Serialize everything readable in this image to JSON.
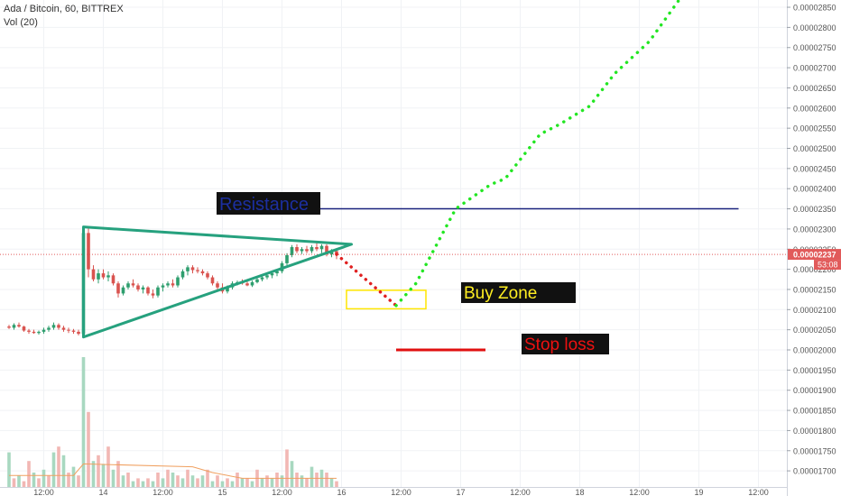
{
  "header": {
    "title": "Ada / Bitcoin, 60, BITTREX",
    "indicator": "Vol (20)"
  },
  "price_badge": {
    "value": "0.00002237",
    "countdown": "53:08",
    "color": "#e15a5a"
  },
  "annotations": {
    "resistance": "Resistance",
    "buy_zone": "Buy Zone",
    "stop_loss": "Stop loss"
  },
  "colors": {
    "up": "#2e9e6e",
    "down": "#d9534f",
    "triangle": "#26a17e",
    "resistance_line": "#1a237e",
    "stop_line": "#e01010",
    "buy_zone": "#ffe600",
    "forecast_up": "#22e622",
    "forecast_down": "#e02020"
  },
  "chart_data": {
    "type": "candlestick",
    "x_ticks": [
      {
        "t": 0,
        "label": "12:00"
      },
      {
        "t": 12,
        "label": "14"
      },
      {
        "t": 24,
        "label": "12:00"
      },
      {
        "t": 36,
        "label": "15"
      },
      {
        "t": 48,
        "label": "12:00"
      },
      {
        "t": 60,
        "label": "16"
      },
      {
        "t": 72,
        "label": "12:00"
      },
      {
        "t": 84,
        "label": "17"
      },
      {
        "t": 96,
        "label": "12:00"
      },
      {
        "t": 108,
        "label": "18"
      },
      {
        "t": 120,
        "label": "12:00"
      },
      {
        "t": 132,
        "label": "19"
      },
      {
        "t": 144,
        "label": "12:00"
      }
    ],
    "y_range": [
      1.66e-05,
      2.868e-05
    ],
    "y_ticks": [
      "0.00001700",
      "0.00001750",
      "0.00001800",
      "0.00001850",
      "0.00001900",
      "0.00001950",
      "0.00002000",
      "0.00002050",
      "0.00002100",
      "0.00002150",
      "0.00002200",
      "0.00002250",
      "0.00002300",
      "0.00002350",
      "0.00002400",
      "0.00002450",
      "0.00002500",
      "0.00002550",
      "0.00002600",
      "0.00002650",
      "0.00002700",
      "0.00002750",
      "0.00002800",
      "0.00002850"
    ],
    "candles": [
      [
        -7,
        2.058,
        2.062,
        2.052,
        2.055
      ],
      [
        -6,
        2.055,
        2.066,
        2.05,
        2.062
      ],
      [
        -5,
        2.062,
        2.068,
        2.055,
        2.058
      ],
      [
        -4,
        2.058,
        2.06,
        2.045,
        2.048
      ],
      [
        -3,
        2.048,
        2.052,
        2.04,
        2.045
      ],
      [
        -2,
        2.045,
        2.05,
        2.04,
        2.042
      ],
      [
        -1,
        2.042,
        2.048,
        2.038,
        2.045
      ],
      [
        0,
        2.045,
        2.055,
        2.04,
        2.05
      ],
      [
        1,
        2.05,
        2.06,
        2.045,
        2.055
      ],
      [
        2,
        2.055,
        2.068,
        2.05,
        2.062
      ],
      [
        3,
        2.062,
        2.066,
        2.05,
        2.055
      ],
      [
        4,
        2.055,
        2.06,
        2.045,
        2.05
      ],
      [
        5,
        2.05,
        2.055,
        2.042,
        2.048
      ],
      [
        6,
        2.048,
        2.052,
        2.04,
        2.045
      ],
      [
        7,
        2.045,
        2.05,
        2.036,
        2.04
      ],
      [
        8,
        2.04,
        2.3,
        2.035,
        2.29
      ],
      [
        9,
        2.29,
        2.305,
        2.18,
        2.2
      ],
      [
        10,
        2.2,
        2.21,
        2.17,
        2.175
      ],
      [
        11,
        2.175,
        2.2,
        2.165,
        2.19
      ],
      [
        12,
        2.19,
        2.2,
        2.175,
        2.18
      ],
      [
        13,
        2.18,
        2.195,
        2.17,
        2.185
      ],
      [
        14,
        2.185,
        2.19,
        2.16,
        2.165
      ],
      [
        15,
        2.165,
        2.17,
        2.13,
        2.14
      ],
      [
        16,
        2.14,
        2.16,
        2.135,
        2.155
      ],
      [
        17,
        2.155,
        2.17,
        2.15,
        2.165
      ],
      [
        18,
        2.165,
        2.175,
        2.155,
        2.16
      ],
      [
        19,
        2.16,
        2.165,
        2.145,
        2.15
      ],
      [
        20,
        2.15,
        2.16,
        2.14,
        2.155
      ],
      [
        21,
        2.155,
        2.158,
        2.135,
        2.14
      ],
      [
        22,
        2.14,
        2.15,
        2.128,
        2.135
      ],
      [
        23,
        2.135,
        2.16,
        2.13,
        2.155
      ],
      [
        24,
        2.155,
        2.165,
        2.145,
        2.16
      ],
      [
        25,
        2.16,
        2.17,
        2.155,
        2.165
      ],
      [
        26,
        2.165,
        2.175,
        2.155,
        2.16
      ],
      [
        27,
        2.16,
        2.185,
        2.155,
        2.18
      ],
      [
        28,
        2.18,
        2.2,
        2.175,
        2.195
      ],
      [
        29,
        2.195,
        2.21,
        2.185,
        2.205
      ],
      [
        30,
        2.205,
        2.21,
        2.19,
        2.198
      ],
      [
        31,
        2.198,
        2.205,
        2.19,
        2.195
      ],
      [
        32,
        2.195,
        2.2,
        2.185,
        2.19
      ],
      [
        33,
        2.19,
        2.195,
        2.175,
        2.18
      ],
      [
        34,
        2.18,
        2.185,
        2.16,
        2.165
      ],
      [
        35,
        2.165,
        2.17,
        2.15,
        2.155
      ],
      [
        36,
        2.155,
        2.165,
        2.14,
        2.145
      ],
      [
        37,
        2.145,
        2.16,
        2.14,
        2.155
      ],
      [
        38,
        2.155,
        2.17,
        2.15,
        2.165
      ],
      [
        39,
        2.165,
        2.172,
        2.16,
        2.168
      ],
      [
        40,
        2.168,
        2.175,
        2.162,
        2.165
      ],
      [
        41,
        2.165,
        2.17,
        2.158,
        2.16
      ],
      [
        42,
        2.16,
        2.172,
        2.156,
        2.168
      ],
      [
        43,
        2.168,
        2.18,
        2.165,
        2.175
      ],
      [
        44,
        2.175,
        2.185,
        2.17,
        2.18
      ],
      [
        45,
        2.18,
        2.19,
        2.175,
        2.185
      ],
      [
        46,
        2.185,
        2.195,
        2.178,
        2.19
      ],
      [
        47,
        2.19,
        2.2,
        2.183,
        2.195
      ],
      [
        48,
        2.195,
        2.22,
        2.19,
        2.215
      ],
      [
        49,
        2.215,
        2.24,
        2.21,
        2.235
      ],
      [
        50,
        2.235,
        2.26,
        2.23,
        2.255
      ],
      [
        51,
        2.255,
        2.262,
        2.24,
        2.245
      ],
      [
        52,
        2.245,
        2.255,
        2.238,
        2.25
      ],
      [
        53,
        2.25,
        2.258,
        2.24,
        2.245
      ],
      [
        54,
        2.245,
        2.26,
        2.24,
        2.255
      ],
      [
        55,
        2.255,
        2.265,
        2.245,
        2.25
      ],
      [
        56,
        2.25,
        2.262,
        2.24,
        2.258
      ],
      [
        57,
        2.258,
        2.262,
        2.232,
        2.237
      ],
      [
        58,
        2.237,
        2.25,
        2.23,
        2.245
      ],
      [
        59,
        2.245,
        2.25,
        2.225,
        2.237
      ]
    ],
    "volume": [
      [
        -7,
        12,
        1
      ],
      [
        -6,
        3,
        0
      ],
      [
        -5,
        4,
        1
      ],
      [
        -4,
        2,
        0
      ],
      [
        -3,
        9,
        0
      ],
      [
        -2,
        5,
        1
      ],
      [
        -1,
        3,
        0
      ],
      [
        0,
        6,
        1
      ],
      [
        1,
        4,
        0
      ],
      [
        2,
        12,
        1
      ],
      [
        3,
        14,
        0
      ],
      [
        4,
        11,
        1
      ],
      [
        5,
        5,
        0
      ],
      [
        6,
        7,
        1
      ],
      [
        7,
        4,
        0
      ],
      [
        8,
        45,
        1
      ],
      [
        9,
        26,
        0
      ],
      [
        10,
        9,
        1
      ],
      [
        11,
        11,
        0
      ],
      [
        12,
        8,
        1
      ],
      [
        13,
        14,
        0
      ],
      [
        14,
        6,
        1
      ],
      [
        15,
        9,
        0
      ],
      [
        16,
        4,
        1
      ],
      [
        17,
        5,
        0
      ],
      [
        18,
        2,
        1
      ],
      [
        19,
        3,
        0
      ],
      [
        20,
        2,
        1
      ],
      [
        21,
        3,
        0
      ],
      [
        22,
        2,
        1
      ],
      [
        23,
        5,
        0
      ],
      [
        24,
        3,
        1
      ],
      [
        25,
        6,
        0
      ],
      [
        26,
        5,
        1
      ],
      [
        27,
        4,
        0
      ],
      [
        28,
        3,
        1
      ],
      [
        29,
        6,
        0
      ],
      [
        30,
        4,
        1
      ],
      [
        31,
        3,
        0
      ],
      [
        32,
        4,
        1
      ],
      [
        33,
        6,
        0
      ],
      [
        34,
        2,
        1
      ],
      [
        35,
        4,
        0
      ],
      [
        36,
        2,
        1
      ],
      [
        37,
        3,
        0
      ],
      [
        38,
        2,
        1
      ],
      [
        39,
        5,
        0
      ],
      [
        40,
        3,
        1
      ],
      [
        41,
        3,
        0
      ],
      [
        42,
        2,
        1
      ],
      [
        43,
        6,
        0
      ],
      [
        44,
        3,
        1
      ],
      [
        45,
        4,
        0
      ],
      [
        46,
        3,
        1
      ],
      [
        47,
        5,
        0
      ],
      [
        48,
        4,
        1
      ],
      [
        49,
        13,
        0
      ],
      [
        50,
        9,
        1
      ],
      [
        51,
        5,
        0
      ],
      [
        52,
        4,
        1
      ],
      [
        53,
        3,
        0
      ],
      [
        54,
        7,
        1
      ],
      [
        55,
        5,
        0
      ],
      [
        56,
        6,
        1
      ],
      [
        57,
        5,
        0
      ],
      [
        58,
        3,
        1
      ],
      [
        59,
        2,
        0
      ]
    ],
    "volume_ma": [
      [
        -7,
        4
      ],
      [
        6,
        4
      ],
      [
        8,
        8
      ],
      [
        30,
        7
      ],
      [
        34,
        5
      ],
      [
        40,
        3
      ],
      [
        59,
        3
      ]
    ],
    "triangle": [
      [
        8,
        2.305
      ],
      [
        8,
        2.032
      ],
      [
        62,
        2.262
      ]
    ],
    "resistance": {
      "t1": 47,
      "t2": 140,
      "price": 2.35
    },
    "buy_zone": {
      "t1": 61,
      "t2": 77,
      "low": 2.102,
      "high": 2.148
    },
    "stop_loss": {
      "t1": 71,
      "t2": 89,
      "price": 2.0
    },
    "forecast_down": [
      [
        59,
        2.237
      ],
      [
        71,
        2.11
      ]
    ],
    "forecast_up": [
      [
        71,
        2.11
      ],
      [
        75,
        2.165
      ],
      [
        83,
        2.35
      ],
      [
        90,
        2.41
      ],
      [
        93,
        2.425
      ],
      [
        100,
        2.535
      ],
      [
        104,
        2.56
      ],
      [
        110,
        2.605
      ],
      [
        115,
        2.685
      ],
      [
        122,
        2.765
      ],
      [
        128,
        2.868
      ]
    ]
  }
}
